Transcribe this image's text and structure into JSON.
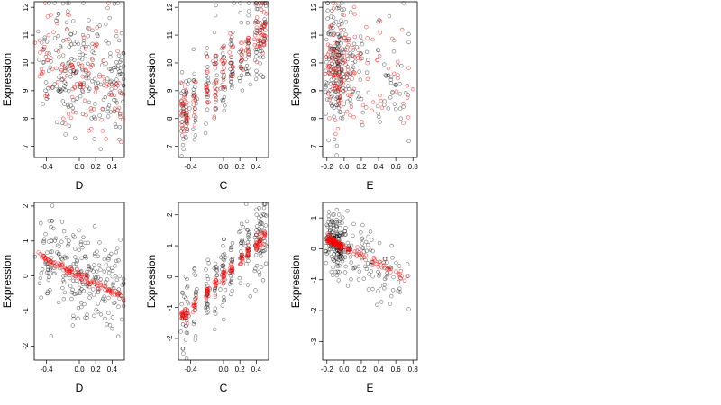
{
  "chart_data": [
    {
      "type": "scatter",
      "xlabel": "D",
      "ylabel": "Expression",
      "xlim": [
        -0.55,
        0.55
      ],
      "ylim": [
        6.6,
        12.2
      ],
      "xticks": [
        -0.4,
        0.0,
        0.2,
        0.4
      ],
      "yticks": [
        7,
        8,
        9,
        10,
        11,
        12
      ],
      "xtick_labels": [
        "-0.4",
        "0.0",
        "0.2",
        "0.4"
      ],
      "ytick_labels": [
        "7",
        "8",
        "9",
        "10",
        "11",
        "12"
      ],
      "x_groups": [
        -0.45,
        -0.33,
        -0.2,
        -0.1,
        0.0,
        0.08,
        0.18,
        0.3,
        0.4,
        0.5
      ],
      "series": [
        {
          "color": "#000000",
          "fit": {
            "type": "scatter",
            "intercept": 9.9,
            "slope": -0.6,
            "spread": 1.15,
            "xspread": 0.05,
            "n": 240,
            "seed": 11
          }
        },
        {
          "color": "#ff0000",
          "fit": {
            "type": "scatter",
            "intercept": 9.7,
            "slope": -1.2,
            "spread": 1.1,
            "xspread": 0.05,
            "n": 110,
            "seed": 12
          }
        }
      ],
      "grid": false
    },
    {
      "type": "scatter",
      "xlabel": "C",
      "ylabel": "Expression",
      "xlim": [
        -0.55,
        0.55
      ],
      "ylim": [
        6.6,
        12.2
      ],
      "xticks": [
        -0.4,
        0.0,
        0.2,
        0.4
      ],
      "yticks": [
        7,
        8,
        9,
        10,
        11,
        12
      ],
      "xtick_labels": [
        "-0.4",
        "0.0",
        "0.2",
        "0.4"
      ],
      "ytick_labels": [
        "7",
        "8",
        "9",
        "10",
        "11",
        "12"
      ],
      "x_groups": [
        -0.5,
        -0.45,
        -0.35,
        -0.2,
        -0.1,
        0.0,
        0.1,
        0.22,
        0.3,
        0.4,
        0.45,
        0.5
      ],
      "series": [
        {
          "color": "#000000",
          "fit": {
            "type": "scatter",
            "intercept": 9.7,
            "slope": 3.0,
            "spread": 0.8,
            "xspread": 0.012,
            "n": 240,
            "seed": 21
          }
        },
        {
          "color": "#ff0000",
          "fit": {
            "type": "scatter",
            "intercept": 9.75,
            "slope": 3.0,
            "spread": 0.5,
            "xspread": 0.01,
            "n": 150,
            "seed": 22
          }
        }
      ],
      "grid": false
    },
    {
      "type": "scatter",
      "xlabel": "E",
      "ylabel": "Expression",
      "xlim": [
        -0.25,
        0.85
      ],
      "ylim": [
        6.6,
        12.2
      ],
      "xticks": [
        -0.2,
        0.0,
        0.2,
        0.4,
        0.6,
        0.8
      ],
      "yticks": [
        7,
        8,
        9,
        10,
        11,
        12
      ],
      "xtick_labels": [
        "-0.2",
        "0.0",
        "0.2",
        "0.4",
        "0.6",
        "0.8"
      ],
      "ytick_labels": [
        "7",
        "8",
        "9",
        "10",
        "11",
        "12"
      ],
      "series": [
        {
          "color": "#000000",
          "fit": {
            "type": "skew",
            "intercept": 9.8,
            "slope": -0.8,
            "spread": 1.1,
            "xmin": -0.22,
            "xmode": -0.1,
            "xmax": 0.75,
            "n": 260,
            "seed": 31
          }
        },
        {
          "color": "#ff0000",
          "fit": {
            "type": "skew",
            "intercept": 9.8,
            "slope": -0.6,
            "spread": 1.0,
            "xmin": -0.22,
            "xmode": -0.1,
            "xmax": 0.8,
            "n": 140,
            "seed": 32
          }
        }
      ],
      "grid": false
    },
    {
      "type": "scatter",
      "xlabel": "D",
      "ylabel": "Expression",
      "xlim": [
        -0.55,
        0.55
      ],
      "ylim": [
        -2.4,
        2.1
      ],
      "xticks": [
        -0.4,
        0.0,
        0.2,
        0.4
      ],
      "yticks": [
        -2,
        -1,
        0,
        1,
        2
      ],
      "xtick_labels": [
        "-0.4",
        "0.0",
        "0.2",
        "0.4"
      ],
      "ytick_labels": [
        "-2",
        "-1",
        "0",
        "1",
        "2"
      ],
      "x_groups": [
        -0.45,
        -0.33,
        -0.2,
        -0.1,
        0.0,
        0.08,
        0.18,
        0.3,
        0.4,
        0.5
      ],
      "series": [
        {
          "color": "#000000",
          "fit": {
            "type": "scatter",
            "intercept": 0.05,
            "slope": -0.8,
            "spread": 0.7,
            "xspread": 0.05,
            "n": 240,
            "seed": 41
          }
        },
        {
          "color": "#ff0000",
          "fit": {
            "type": "line",
            "intercept": 0.02,
            "slope": -1.15,
            "spread": 0.06,
            "xspread": 0.05,
            "n": 110,
            "seed": 42
          }
        }
      ],
      "grid": false
    },
    {
      "type": "scatter",
      "xlabel": "C",
      "ylabel": "Expression",
      "xlim": [
        -0.55,
        0.55
      ],
      "ylim": [
        -2.7,
        2.4
      ],
      "xticks": [
        -0.4,
        0.0,
        0.2,
        0.4
      ],
      "yticks": [
        -2,
        -1,
        0,
        1,
        2
      ],
      "xtick_labels": [
        "-0.4",
        "0.0",
        "0.2",
        "0.4"
      ],
      "ytick_labels": [
        "-2",
        "-1",
        "0",
        "1",
        "2"
      ],
      "x_groups": [
        -0.5,
        -0.45,
        -0.35,
        -0.2,
        -0.1,
        0.0,
        0.1,
        0.22,
        0.3,
        0.4,
        0.45,
        0.5
      ],
      "series": [
        {
          "color": "#000000",
          "fit": {
            "type": "scatter",
            "intercept": 0.0,
            "slope": 2.6,
            "spread": 0.6,
            "xspread": 0.012,
            "n": 240,
            "seed": 51
          }
        },
        {
          "color": "#ff0000",
          "fit": {
            "type": "line",
            "intercept": 0.0,
            "slope": 2.6,
            "spread": 0.12,
            "xspread": 0.01,
            "n": 150,
            "seed": 52
          }
        }
      ],
      "grid": false
    },
    {
      "type": "scatter",
      "xlabel": "E",
      "ylabel": "Expression",
      "xlim": [
        -0.25,
        0.85
      ],
      "ylim": [
        -3.6,
        1.5
      ],
      "xticks": [
        -0.2,
        0.0,
        0.2,
        0.4,
        0.6,
        0.8
      ],
      "yticks": [
        -3,
        -2,
        -1,
        0,
        1
      ],
      "xtick_labels": [
        "-0.2",
        "0.0",
        "0.2",
        "0.4",
        "0.6",
        "0.8"
      ],
      "ytick_labels": [
        "-3",
        "-2",
        "-1",
        "0",
        "1"
      ],
      "series": [
        {
          "color": "#000000",
          "fit": {
            "type": "skew",
            "intercept": 0.05,
            "slope": -1.6,
            "spread": 0.5,
            "xmin": -0.22,
            "xmode": -0.1,
            "xmax": 0.75,
            "n": 260,
            "seed": 61
          }
        },
        {
          "color": "#ff0000",
          "fit": {
            "type": "line",
            "intercept": 0.05,
            "slope": -1.35,
            "spread": 0.06,
            "xmin": -0.2,
            "xmode": -0.12,
            "xmax": 0.78,
            "n": 140,
            "seed": 62
          }
        }
      ],
      "grid": false
    }
  ]
}
